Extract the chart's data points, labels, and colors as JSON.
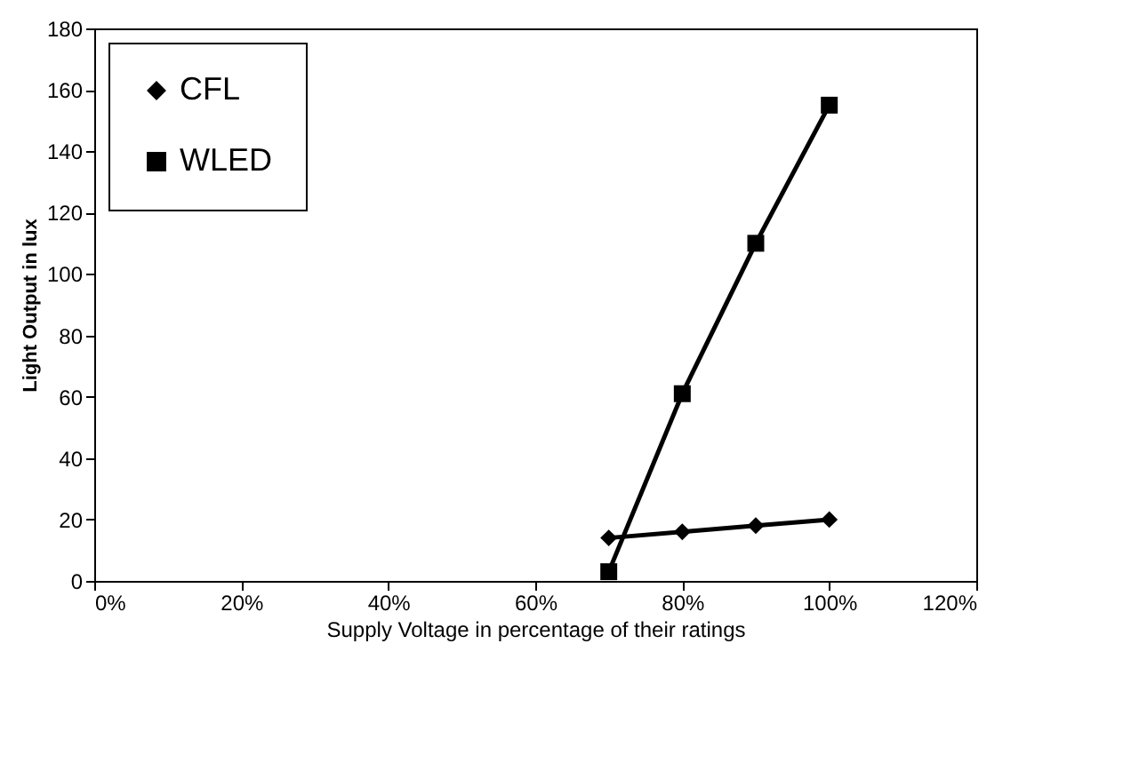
{
  "chart_data": {
    "type": "line",
    "xlabel": "Supply Voltage in percentage of their ratings",
    "ylabel": "Light Output in lux",
    "series": [
      {
        "name": "CFL",
        "color": "#000000",
        "marker": "diamond",
        "x": [
          70,
          80,
          90,
          100
        ],
        "values": [
          14,
          16,
          18,
          20
        ]
      },
      {
        "name": "WLED",
        "color": "#000000",
        "marker": "square",
        "x": [
          70,
          80,
          90,
          100
        ],
        "values": [
          3,
          61,
          110,
          155
        ]
      }
    ],
    "xlim": [
      0,
      120
    ],
    "xticks": [
      {
        "value": 0,
        "label": "0%"
      },
      {
        "value": 20,
        "label": "20%"
      },
      {
        "value": 40,
        "label": "40%"
      },
      {
        "value": 60,
        "label": "60%"
      },
      {
        "value": 80,
        "label": "80%"
      },
      {
        "value": 100,
        "label": "100%"
      },
      {
        "value": 120,
        "label": "120%"
      }
    ],
    "ylim": [
      0,
      180
    ],
    "yticks": [
      0,
      20,
      40,
      60,
      80,
      100,
      120,
      140,
      160,
      180
    ],
    "grid": false,
    "legend": "top left",
    "line_style": "solid"
  }
}
